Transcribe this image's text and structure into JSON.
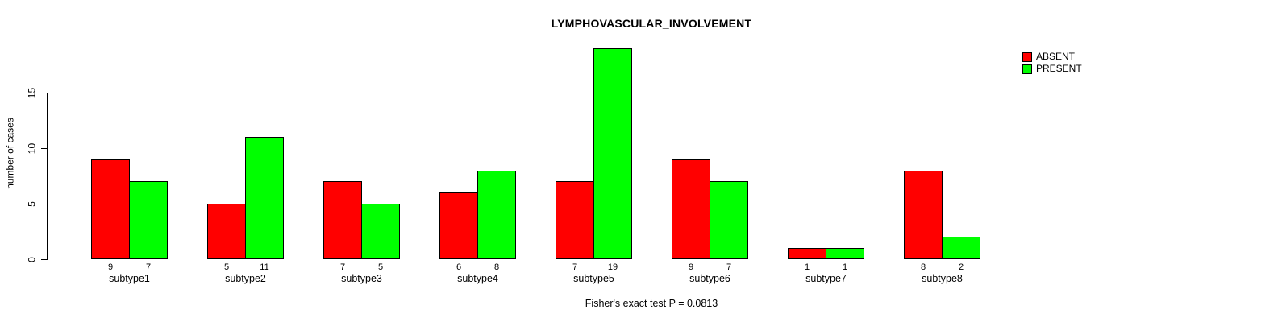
{
  "title": "LYMPHOVASCULAR_INVOLVEMENT",
  "y_axis": {
    "label": "number of cases",
    "ticks": [
      0,
      5,
      10,
      15
    ]
  },
  "footer": "Fisher's exact test P = 0.0813",
  "legend": {
    "items": [
      {
        "label": "ABSENT",
        "color": "#ff0000"
      },
      {
        "label": "PRESENT",
        "color": "#00ff00"
      }
    ]
  },
  "chart_data": {
    "type": "bar",
    "title": "LYMPHOVASCULAR_INVOLVEMENT",
    "categories": [
      "subtype1",
      "subtype2",
      "subtype3",
      "subtype4",
      "subtype5",
      "subtype6",
      "subtype7",
      "subtype8"
    ],
    "series": [
      {
        "name": "ABSENT",
        "color": "#ff0000",
        "values": [
          9,
          5,
          7,
          6,
          7,
          9,
          1,
          8
        ]
      },
      {
        "name": "PRESENT",
        "color": "#00ff00",
        "values": [
          7,
          11,
          5,
          8,
          19,
          7,
          1,
          2
        ]
      }
    ],
    "bar_value_labels": [
      [
        "9",
        "7"
      ],
      [
        "5",
        "11"
      ],
      [
        "7",
        "5"
      ],
      [
        "6",
        "8"
      ],
      [
        "7",
        "19"
      ],
      [
        "9",
        "7"
      ],
      [
        "1",
        "1"
      ],
      [
        "8",
        "2"
      ]
    ],
    "xlabel": "",
    "ylabel": "number of cases",
    "ylim": [
      0,
      19
    ],
    "yticks": [
      0,
      5,
      10,
      15
    ],
    "grid": false,
    "legend_position": "top-right",
    "annotation": "Fisher's exact test P = 0.0813"
  }
}
